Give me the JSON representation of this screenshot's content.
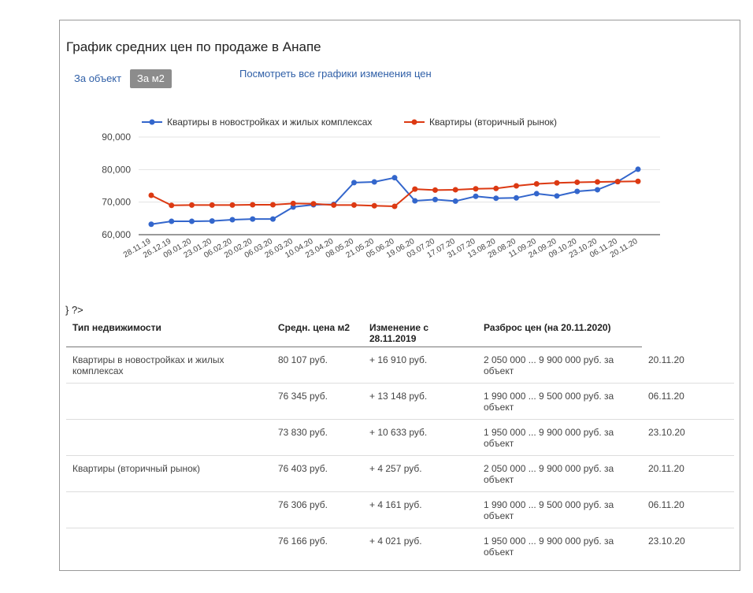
{
  "title": "График средних цен по продаже в Анапе",
  "tabs": {
    "per_object": "За объект",
    "per_m2": "За м2"
  },
  "all_charts_link": "Посмотреть все графики изменения цен",
  "stray_text": "} ?>",
  "colors": {
    "series_new": "#3366cc",
    "series_secondary": "#dc3912",
    "link": "#2f5fa7",
    "change_positive": "#2e9a44"
  },
  "chart_data": {
    "type": "line",
    "legend_position": "top",
    "grid": true,
    "ylim": [
      60000,
      90000
    ],
    "yticks": [
      60000,
      70000,
      80000,
      90000
    ],
    "ytick_labels": [
      "60,000",
      "70,000",
      "80,000",
      "90,000"
    ],
    "categories": [
      "28.11.19",
      "26.12.19",
      "09.01.20",
      "23.01.20",
      "06.02.20",
      "20.02.20",
      "06.03.20",
      "26.03.20",
      "10.04.20",
      "23.04.20",
      "08.05.20",
      "21.05.20",
      "05.06.20",
      "19.06.20",
      "03.07.20",
      "17.07.20",
      "31.07.20",
      "13.08.20",
      "28.08.20",
      "11.09.20",
      "24.09.20",
      "09.10.20",
      "23.10.20",
      "06.11.20",
      "20.11.20"
    ],
    "series": [
      {
        "name": "Квартиры в новостройках и жилых комплексах",
        "color": "#3366cc",
        "values": [
          63200,
          64100,
          64100,
          64200,
          64600,
          64800,
          64800,
          68500,
          69200,
          69300,
          76000,
          76200,
          77500,
          70400,
          70800,
          70300,
          71800,
          71200,
          71300,
          72600,
          71900,
          73300,
          73800,
          76300,
          80100
        ]
      },
      {
        "name": "Квартиры (вторичный рынок)",
        "color": "#dc3912",
        "values": [
          72100,
          69000,
          69100,
          69100,
          69100,
          69200,
          69200,
          69600,
          69500,
          69100,
          69100,
          68900,
          68700,
          74000,
          73700,
          73800,
          74100,
          74200,
          75000,
          75600,
          75900,
          76100,
          76200,
          76300,
          76400
        ]
      }
    ]
  },
  "table": {
    "headers": [
      "Тип недвижимости",
      "Средн. цена м2",
      "Изменение с 28.11.2019",
      "Разброс цен (на 20.11.2020)"
    ],
    "rows": [
      {
        "type": "Квартиры в новостройках и жилых комплексах",
        "price": "80 107 руб.",
        "change": "+ 16 910 руб.",
        "range": "2 050 000 ... 9 900 000 руб. за объект",
        "date": "20.11.20"
      },
      {
        "type": "",
        "price": "76 345 руб.",
        "change": "+ 13 148 руб.",
        "range": "1 990 000 ... 9 500 000 руб. за объект",
        "date": "06.11.20"
      },
      {
        "type": "",
        "price": "73 830 руб.",
        "change": "+ 10 633 руб.",
        "range": "1 950 000 ... 9 900 000 руб. за объект",
        "date": "23.10.20"
      },
      {
        "type": "Квартиры (вторичный рынок)",
        "price": "76 403 руб.",
        "change": "+ 4 257 руб.",
        "range": "2 050 000 ... 9 900 000 руб. за объект",
        "date": "20.11.20"
      },
      {
        "type": "",
        "price": "76 306 руб.",
        "change": "+ 4 161 руб.",
        "range": "1 990 000 ... 9 500 000 руб. за объект",
        "date": "06.11.20"
      },
      {
        "type": "",
        "price": "76 166 руб.",
        "change": "+ 4 021 руб.",
        "range": "1 950 000 ... 9 900 000 руб. за объект",
        "date": "23.10.20"
      }
    ]
  }
}
